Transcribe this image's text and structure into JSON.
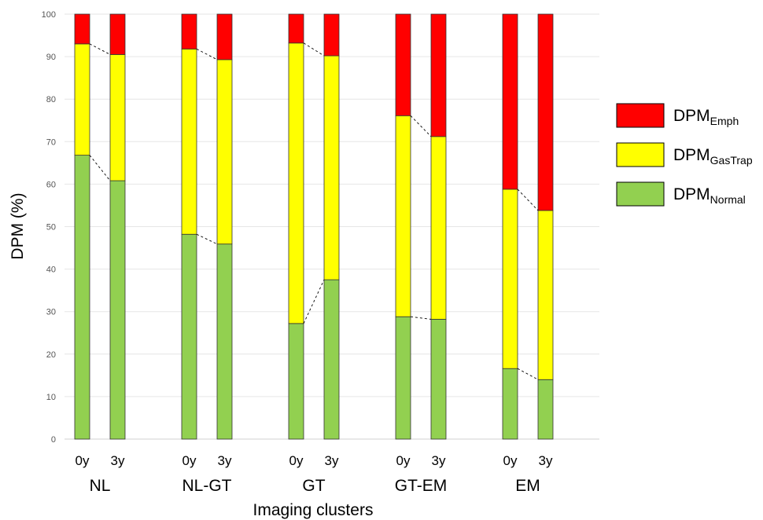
{
  "chart_data": {
    "type": "bar",
    "stacked": true,
    "xlabel": "Imaging clusters",
    "ylabel": "DPM (%)",
    "ylim": [
      0,
      100
    ],
    "yticks": [
      0,
      10,
      20,
      30,
      40,
      50,
      60,
      70,
      80,
      90,
      100
    ],
    "grid": true,
    "legend_position": "right",
    "groups": [
      {
        "name": "NL",
        "bars": [
          {
            "label": "0y",
            "normal": 66.8,
            "gastrap": 26.2,
            "emph": 7.0
          },
          {
            "label": "3y",
            "normal": 60.8,
            "gastrap": 29.7,
            "emph": 9.5
          }
        ]
      },
      {
        "name": "NL-GT",
        "bars": [
          {
            "label": "0y",
            "normal": 48.2,
            "gastrap": 43.6,
            "emph": 8.2
          },
          {
            "label": "3y",
            "normal": 45.9,
            "gastrap": 43.4,
            "emph": 10.7
          }
        ]
      },
      {
        "name": "GT",
        "bars": [
          {
            "label": "0y",
            "normal": 27.2,
            "gastrap": 66.0,
            "emph": 6.8
          },
          {
            "label": "3y",
            "normal": 37.5,
            "gastrap": 52.7,
            "emph": 9.8
          }
        ]
      },
      {
        "name": "GT-EM",
        "bars": [
          {
            "label": "0y",
            "normal": 28.8,
            "gastrap": 47.3,
            "emph": 23.9
          },
          {
            "label": "3y",
            "normal": 28.2,
            "gastrap": 43.0,
            "emph": 28.8
          }
        ]
      },
      {
        "name": "EM",
        "bars": [
          {
            "label": "0y",
            "normal": 16.6,
            "gastrap": 42.2,
            "emph": 41.2
          },
          {
            "label": "3y",
            "normal": 14.0,
            "gastrap": 39.8,
            "emph": 46.2
          }
        ]
      }
    ],
    "series": [
      {
        "key": "emph",
        "name_main": "DPM",
        "name_sub": "Emph",
        "color": "#ff0000"
      },
      {
        "key": "gastrap",
        "name_main": "DPM",
        "name_sub": "GasTrap",
        "color": "#ffff00"
      },
      {
        "key": "normal",
        "name_main": "DPM",
        "name_sub": "Normal",
        "color": "#92d050"
      }
    ]
  }
}
